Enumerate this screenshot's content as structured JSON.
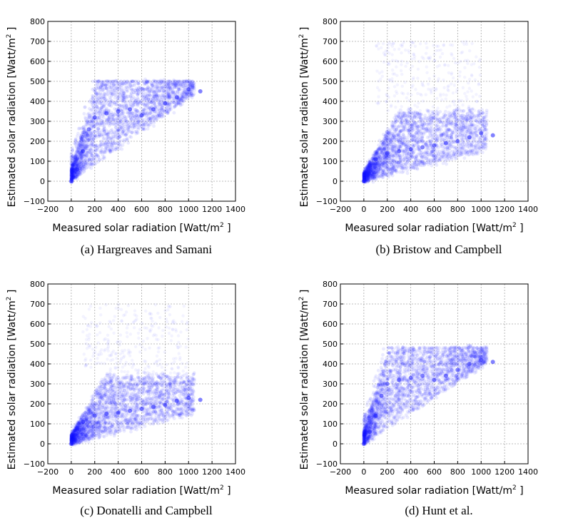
{
  "figure": {
    "xlabel": "Measured solar radiation [Watt/m",
    "xlabel_sup": "2",
    "xlabel_end": " ]",
    "ylabel": "Estimated solar radiation [Watt/m",
    "ylabel_sup": "2",
    "ylabel_end": " ]"
  },
  "chart_data": [
    {
      "type": "scatter",
      "caption": "(a) Hargreaves and Samani",
      "xlim": [
        -200,
        1400
      ],
      "ylim": [
        -100,
        800
      ],
      "xticks": [
        "−200",
        "0",
        "200",
        "400",
        "600",
        "800",
        "1000",
        "1200",
        "1400"
      ],
      "yticks": [
        "−100",
        "0",
        "100",
        "200",
        "300",
        "400",
        "500",
        "600",
        "700",
        "800"
      ],
      "grid": true,
      "color": "#0000ff",
      "shape": "ceiling",
      "ceiling": 500,
      "slope": 0.45,
      "x": [
        0,
        50,
        100,
        150,
        200,
        300,
        400,
        500,
        600,
        700,
        800,
        900,
        1000,
        1100
      ],
      "y": [
        0,
        60,
        150,
        260,
        320,
        340,
        350,
        360,
        330,
        360,
        390,
        420,
        460,
        450
      ]
    },
    {
      "type": "scatter",
      "caption": "(b) Bristow and Campbell",
      "xlim": [
        -200,
        1400
      ],
      "ylim": [
        -100,
        800
      ],
      "xticks": [
        "−200",
        "0",
        "200",
        "400",
        "600",
        "800",
        "1000",
        "1200",
        "1400"
      ],
      "yticks": [
        "−100",
        "0",
        "100",
        "200",
        "300",
        "400",
        "500",
        "600",
        "700",
        "800"
      ],
      "grid": true,
      "color": "#0000ff",
      "shape": "band",
      "ceiling": 350,
      "slope": 0.25,
      "x": [
        0,
        50,
        100,
        200,
        300,
        400,
        500,
        600,
        700,
        800,
        900,
        1000,
        1100
      ],
      "y": [
        0,
        80,
        110,
        140,
        150,
        160,
        170,
        180,
        190,
        200,
        220,
        240,
        230
      ]
    },
    {
      "type": "scatter",
      "caption": "(c) Donatelli and Campbell",
      "xlim": [
        -200,
        1400
      ],
      "ylim": [
        -100,
        800
      ],
      "xticks": [
        "−200",
        "0",
        "200",
        "400",
        "600",
        "800",
        "1000",
        "1200",
        "1400"
      ],
      "yticks": [
        "−100",
        "0",
        "100",
        "200",
        "300",
        "400",
        "500",
        "600",
        "700",
        "800"
      ],
      "grid": true,
      "color": "#0000ff",
      "shape": "band",
      "ceiling": 340,
      "slope": 0.24,
      "x": [
        0,
        50,
        100,
        200,
        300,
        400,
        500,
        600,
        700,
        800,
        900,
        1000,
        1100
      ],
      "y": [
        0,
        80,
        110,
        140,
        150,
        155,
        165,
        175,
        185,
        195,
        215,
        230,
        220
      ]
    },
    {
      "type": "scatter",
      "caption": "(d) Hunt et al.",
      "xlim": [
        -200,
        1400
      ],
      "ylim": [
        -100,
        800
      ],
      "xticks": [
        "−200",
        "0",
        "200",
        "400",
        "600",
        "800",
        "1000",
        "1200",
        "1400"
      ],
      "yticks": [
        "−100",
        "0",
        "100",
        "200",
        "300",
        "400",
        "500",
        "600",
        "700",
        "800"
      ],
      "grid": true,
      "color": "#0000ff",
      "shape": "ceiling",
      "ceiling": 480,
      "slope": 0.42,
      "x": [
        0,
        50,
        100,
        150,
        200,
        300,
        400,
        500,
        600,
        700,
        800,
        900,
        1000,
        1100
      ],
      "y": [
        0,
        60,
        140,
        240,
        300,
        320,
        330,
        340,
        320,
        340,
        370,
        400,
        420,
        410
      ]
    }
  ]
}
